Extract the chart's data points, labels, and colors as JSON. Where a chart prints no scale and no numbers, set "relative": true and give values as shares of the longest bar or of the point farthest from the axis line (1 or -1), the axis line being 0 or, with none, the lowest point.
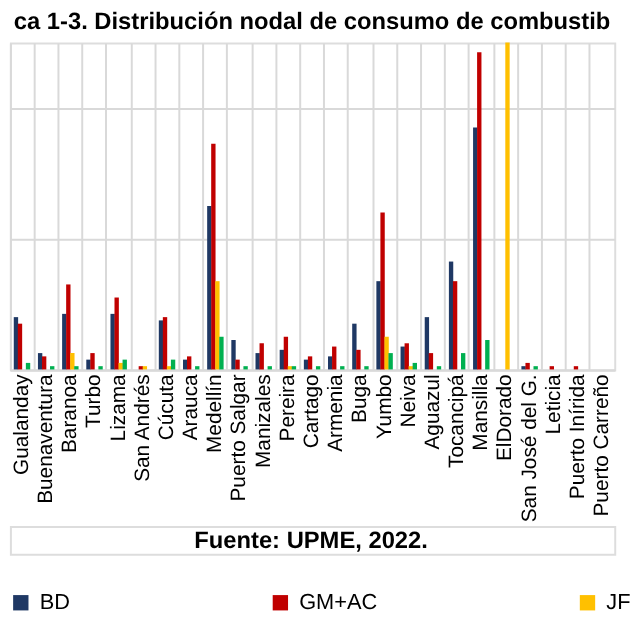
{
  "chart_data": {
    "type": "bar",
    "title": "ca 1-3. Distribución nodal de consumo de combustib",
    "relative": true,
    "grid": true,
    "legend": "bottom",
    "annotations": [
      "Fuente: UPME, 2022."
    ],
    "categories": [
      "Gualanday",
      "Buenaventura",
      "Baranoa",
      "Turbo",
      "Lizama",
      "San Andrés",
      "Cúcuta",
      "Arauca",
      "Medellín",
      "Puerto Salgar",
      "Manizales",
      "Pereira",
      "Cartago",
      "Armenia",
      "Buga",
      "Yumbo",
      "Neiva",
      "Aguazul",
      "Tocancipá",
      "Mansilla",
      "ElDorado",
      "San José del G.",
      "Leticia",
      "Puerto Inírida",
      "Puerto Carreño"
    ],
    "series": [
      {
        "name": "BD",
        "color": "#1f3864",
        "values": [
          0.16,
          0.05,
          0.17,
          0.03,
          0.17,
          0,
          0.15,
          0.03,
          0.5,
          0.09,
          0.05,
          0.06,
          0.03,
          0.04,
          0.14,
          0.27,
          0.07,
          0.16,
          0.33,
          0.74,
          0,
          0.01,
          0,
          0,
          0
        ]
      },
      {
        "name": "GM+AC",
        "color": "#c00000",
        "values": [
          0.14,
          0.04,
          0.26,
          0.05,
          0.22,
          0.01,
          0.16,
          0.04,
          0.69,
          0.03,
          0.08,
          0.1,
          0.04,
          0.07,
          0.06,
          0.48,
          0.08,
          0.05,
          0.27,
          0.97,
          0,
          0.02,
          0.01,
          0.01,
          0
        ]
      },
      {
        "name": "JF",
        "color": "#ffc000",
        "values": [
          0,
          0,
          0.05,
          0,
          0.02,
          0.01,
          0.01,
          0,
          0.27,
          0,
          0,
          0.01,
          0,
          0,
          0,
          0.1,
          0.01,
          0,
          0,
          0,
          1,
          0,
          0,
          0,
          0
        ]
      },
      {
        "color": "#00b050",
        "values": [
          0.02,
          0.01,
          0.01,
          0.01,
          0.03,
          0,
          0.03,
          0.01,
          0.1,
          0.01,
          0.01,
          0.01,
          0.01,
          0.01,
          0.01,
          0.05,
          0.02,
          0.01,
          0.05,
          0.09,
          0,
          0.01,
          0,
          0,
          0
        ]
      }
    ]
  }
}
